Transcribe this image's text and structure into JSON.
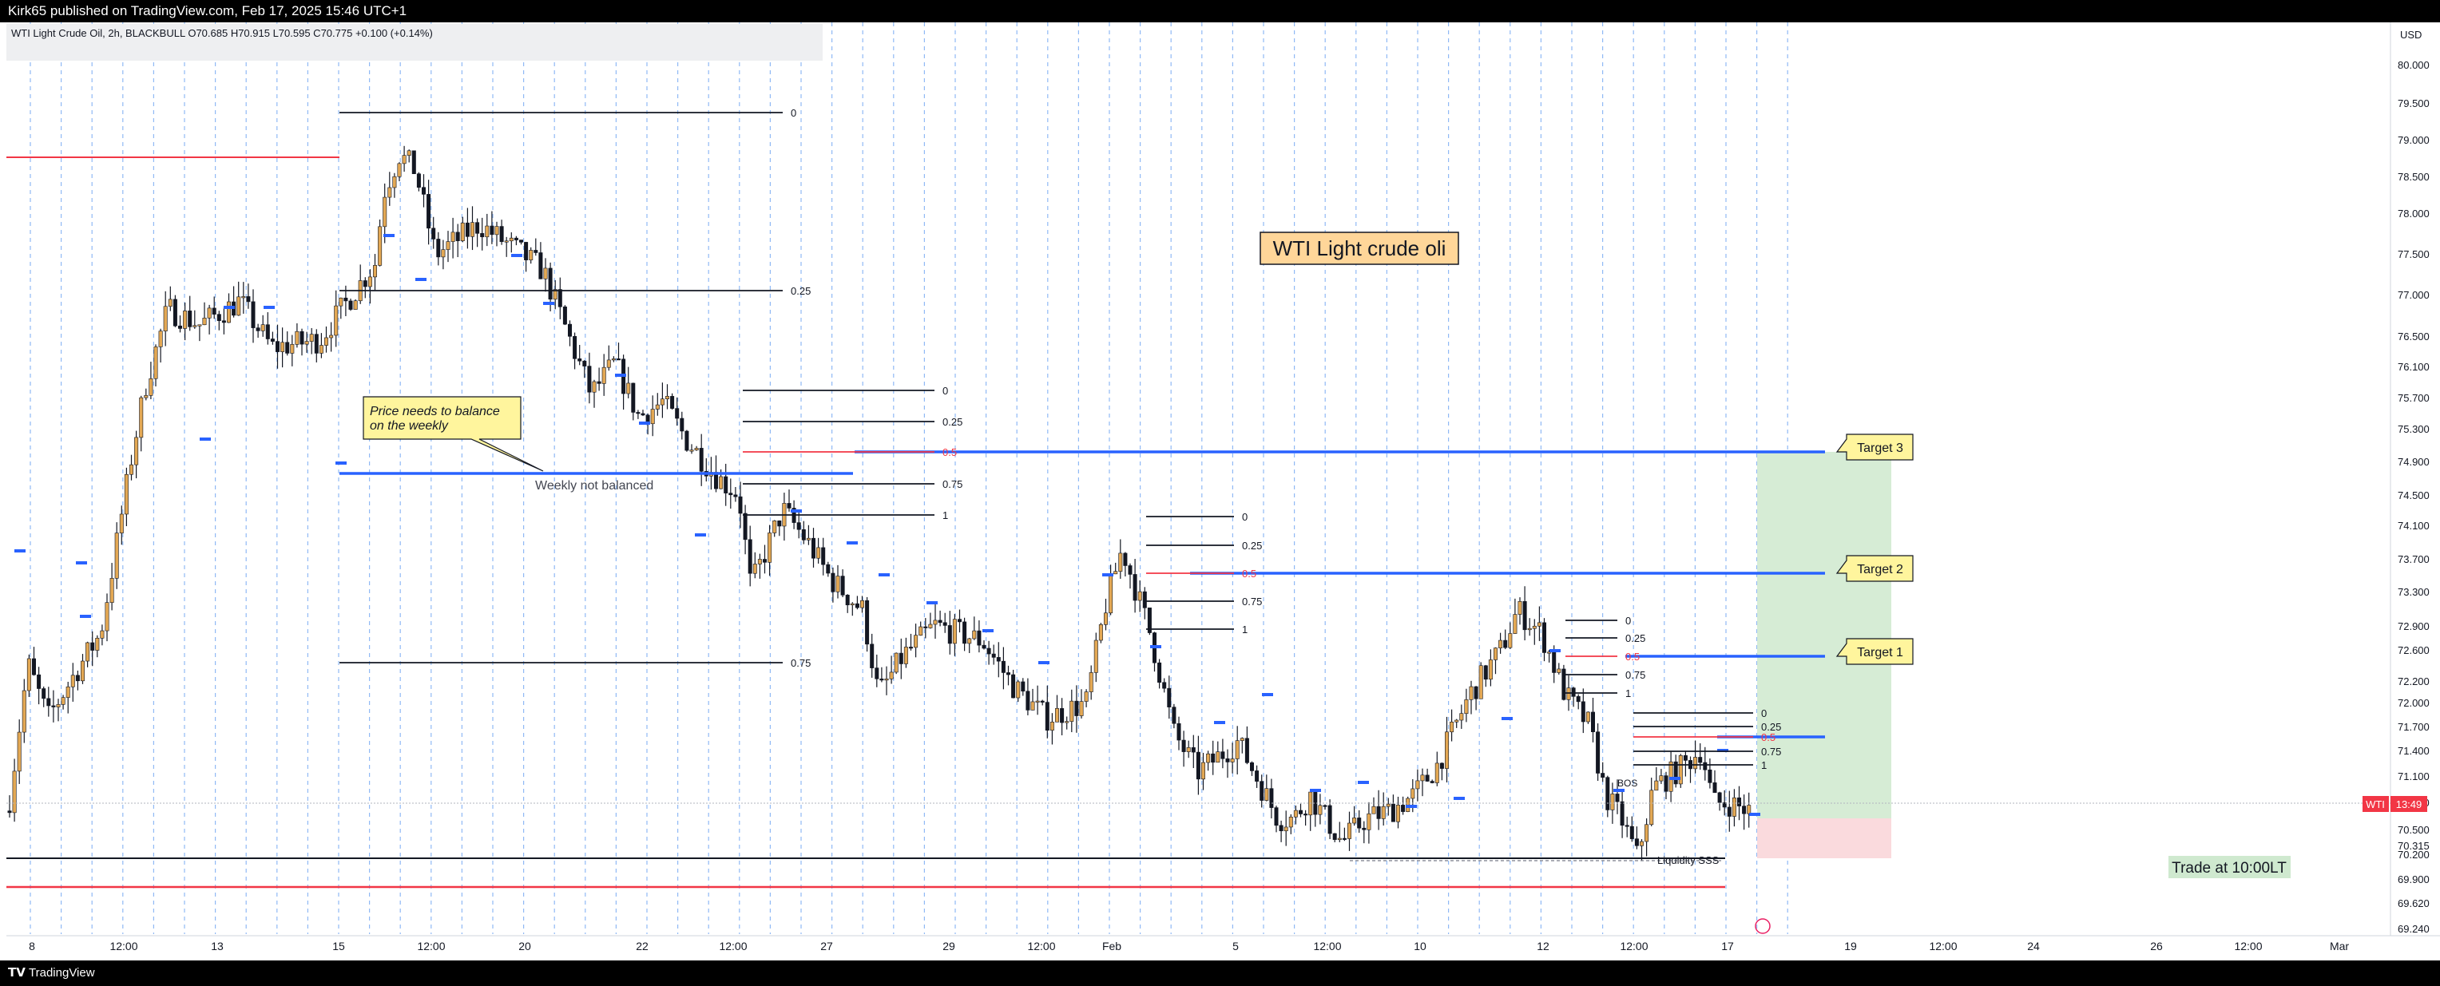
{
  "header": {
    "published": "Kirk65 published on TradingView.com, Feb 17, 2025 15:46 UTC+1"
  },
  "symbol_bar": {
    "text": "WTI Light Crude Oil, 2h, BLACKBULL  O70.685  H70.915  L70.595  C70.775  +0.100 (+0.14%)"
  },
  "footer": {
    "brand": "TradingView"
  },
  "price_scale": {
    "currency": "USD",
    "ticks": [
      "80.000",
      "79.500",
      "79.000",
      "78.500",
      "78.000",
      "77.500",
      "77.000",
      "76.500",
      "76.100",
      "75.700",
      "75.300",
      "74.900",
      "74.500",
      "74.100",
      "73.700",
      "73.300",
      "72.900",
      "72.600",
      "72.200",
      "72.000",
      "71.700",
      "71.400",
      "71.100",
      "70.800",
      "70.500",
      "70.315",
      "70.200",
      "69.900",
      "69.620",
      "69.240"
    ],
    "symbol_tag": "WTI",
    "countdown": "13:49"
  },
  "time_axis": {
    "labels": [
      "8",
      "12:00",
      "13",
      "15",
      "12:00",
      "20",
      "22",
      "12:00",
      "27",
      "29",
      "12:00",
      "Feb",
      "5",
      "12:00",
      "10",
      "12",
      "12:00",
      "17",
      "19",
      "12:00",
      "24",
      "26",
      "12:00",
      "Mar"
    ]
  },
  "annotations": {
    "title_box": "WTI Light crude oli",
    "callout": [
      "Price needs to balance",
      "on the weekly"
    ],
    "weekly_note": "Weekly not balanced",
    "targets": [
      "Target 3",
      "Target 2",
      "Target 1"
    ],
    "trade_note": "Trade at 10:00LT",
    "liquidity": "Liquidity SSS",
    "bos": "BOS"
  },
  "fib_levels": [
    "0",
    "0.25",
    "0.5",
    "0.75",
    "1"
  ],
  "colors": {
    "up": "#e3a854",
    "down": "#131722",
    "level_blue": "#2962ff",
    "level_red": "#f23645",
    "grid_blue": "#90b9f5",
    "target_zone": "#d6ecd5",
    "stop_zone": "#fadadd",
    "note_fill": "#fff59d",
    "title_fill": "#ffd699"
  },
  "chart_data": {
    "type": "candlestick",
    "timeframe": "2h",
    "ylim": [
      69.24,
      80.2
    ],
    "last_price": 70.775,
    "ohlc_last": {
      "open": 70.685,
      "high": 70.915,
      "low": 70.595,
      "close": 70.775
    },
    "key_levels": [
      {
        "label": "Target 3",
        "price": 75.0
      },
      {
        "label": "Target 2",
        "price": 73.65
      },
      {
        "label": "Target 1",
        "price": 72.55
      },
      {
        "label": "Weekly not balanced",
        "price": 74.95
      }
    ]
  }
}
